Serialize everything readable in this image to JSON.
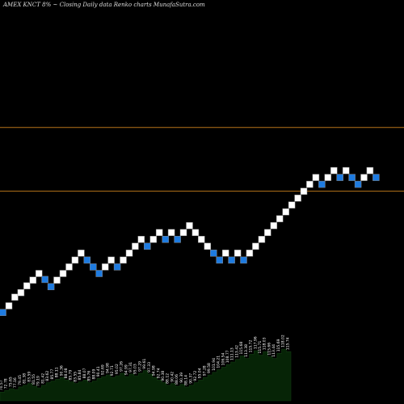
{
  "chart_data": {
    "type": "renko",
    "title": "AMEX  KNCT 8% ~  Closing Daily data  Renko  charts MunafaSutra.com",
    "colors": {
      "background": "#000000",
      "up_brick": "#ffffff",
      "down_brick": "#1e7be0",
      "brick_border": "#888888",
      "level_line": "#b8741a",
      "volume_fill": "#062406",
      "volume_line": "#123a12",
      "label": "#ffffff"
    },
    "y_range": [
      40,
      175
    ],
    "levels": [
      132.4,
      111.1
    ],
    "bricks": [
      {
        "value": 70.6,
        "dir": "down"
      },
      {
        "value": 72.8,
        "dir": "up"
      },
      {
        "value": 75.7,
        "dir": "up"
      },
      {
        "value": 77.2,
        "dir": "up"
      },
      {
        "value": 79.5,
        "dir": "up"
      },
      {
        "value": 81.4,
        "dir": "up"
      },
      {
        "value": 83.6,
        "dir": "up"
      },
      {
        "value": 81.6,
        "dir": "down"
      },
      {
        "value": 79.2,
        "dir": "down"
      },
      {
        "value": 81.4,
        "dir": "up"
      },
      {
        "value": 83.6,
        "dir": "up"
      },
      {
        "value": 85.8,
        "dir": "up"
      },
      {
        "value": 88.1,
        "dir": "up"
      },
      {
        "value": 90.4,
        "dir": "up"
      },
      {
        "value": 88.1,
        "dir": "down"
      },
      {
        "value": 85.8,
        "dir": "down"
      },
      {
        "value": 83.6,
        "dir": "down"
      },
      {
        "value": 85.8,
        "dir": "up"
      },
      {
        "value": 88.1,
        "dir": "up"
      },
      {
        "value": 85.8,
        "dir": "down"
      },
      {
        "value": 88.1,
        "dir": "up"
      },
      {
        "value": 90.4,
        "dir": "up"
      },
      {
        "value": 92.7,
        "dir": "up"
      },
      {
        "value": 95.0,
        "dir": "up"
      },
      {
        "value": 92.7,
        "dir": "down"
      },
      {
        "value": 95.0,
        "dir": "up"
      },
      {
        "value": 97.3,
        "dir": "up"
      },
      {
        "value": 95.0,
        "dir": "down"
      },
      {
        "value": 97.3,
        "dir": "up"
      },
      {
        "value": 95.0,
        "dir": "down"
      },
      {
        "value": 97.3,
        "dir": "up"
      },
      {
        "value": 99.6,
        "dir": "up"
      },
      {
        "value": 97.3,
        "dir": "up"
      },
      {
        "value": 95.0,
        "dir": "up"
      },
      {
        "value": 92.7,
        "dir": "up"
      },
      {
        "value": 90.4,
        "dir": "down"
      },
      {
        "value": 88.1,
        "dir": "down"
      },
      {
        "value": 90.4,
        "dir": "up"
      },
      {
        "value": 88.1,
        "dir": "down"
      },
      {
        "value": 90.4,
        "dir": "up"
      },
      {
        "value": 88.1,
        "dir": "down"
      },
      {
        "value": 90.4,
        "dir": "up"
      },
      {
        "value": 92.7,
        "dir": "up"
      },
      {
        "value": 95.0,
        "dir": "up"
      },
      {
        "value": 97.3,
        "dir": "up"
      },
      {
        "value": 99.6,
        "dir": "up"
      },
      {
        "value": 101.9,
        "dir": "up"
      },
      {
        "value": 104.2,
        "dir": "up"
      },
      {
        "value": 106.5,
        "dir": "up"
      },
      {
        "value": 108.8,
        "dir": "up"
      },
      {
        "value": 111.1,
        "dir": "up"
      },
      {
        "value": 113.4,
        "dir": "up"
      },
      {
        "value": 115.7,
        "dir": "up"
      },
      {
        "value": 113.4,
        "dir": "down"
      },
      {
        "value": 115.7,
        "dir": "up"
      },
      {
        "value": 118.0,
        "dir": "up"
      },
      {
        "value": 115.7,
        "dir": "down"
      },
      {
        "value": 118.0,
        "dir": "up"
      },
      {
        "value": 115.7,
        "dir": "down"
      },
      {
        "value": 113.4,
        "dir": "down"
      },
      {
        "value": 115.7,
        "dir": "up"
      },
      {
        "value": 118.0,
        "dir": "up"
      },
      {
        "value": 115.7,
        "dir": "down"
      }
    ],
    "volume_labels": [
      "70.57",
      "72.78",
      "75.65",
      "77.16",
      "79.45",
      "81.38",
      "83.59",
      "81.55",
      "79.19",
      "81.42",
      "83.62",
      "85.77",
      "88.11",
      "90.36",
      "88.08",
      "85.79",
      "83.55",
      "85.84",
      "88.07",
      "85.76",
      "88.09",
      "90.41",
      "92.69",
      "94.98",
      "92.71",
      "95.02",
      "97.26",
      "94.99",
      "97.31",
      "95.03",
      "97.29",
      "99.61",
      "97.33",
      "94.98",
      "92.74",
      "90.38",
      "88.12",
      "90.42",
      "88.06",
      "90.39",
      "88.14",
      "90.37",
      "92.72",
      "95.04",
      "97.28",
      "99.58",
      "101.94",
      "104.21",
      "106.54",
      "108.77",
      "111.13",
      "113.42",
      "115.68",
      "113.38",
      "115.72",
      "117.96",
      "115.71",
      "118.03",
      "115.66",
      "113.44",
      "115.69",
      "118.02",
      "115.74"
    ],
    "volume": [
      10,
      12,
      14,
      13,
      16,
      18,
      20,
      17,
      15,
      18,
      21,
      23,
      25,
      27,
      24,
      22,
      20,
      22,
      24,
      21,
      23,
      26,
      28,
      30,
      27,
      29,
      32,
      28,
      31,
      29,
      32,
      35,
      31,
      27,
      24,
      21,
      18,
      20,
      17,
      19,
      16,
      18,
      21,
      24,
      27,
      30,
      33,
      36,
      39,
      42,
      45,
      48,
      52,
      49,
      54,
      58,
      53,
      57,
      51,
      49,
      55,
      60,
      57
    ]
  }
}
